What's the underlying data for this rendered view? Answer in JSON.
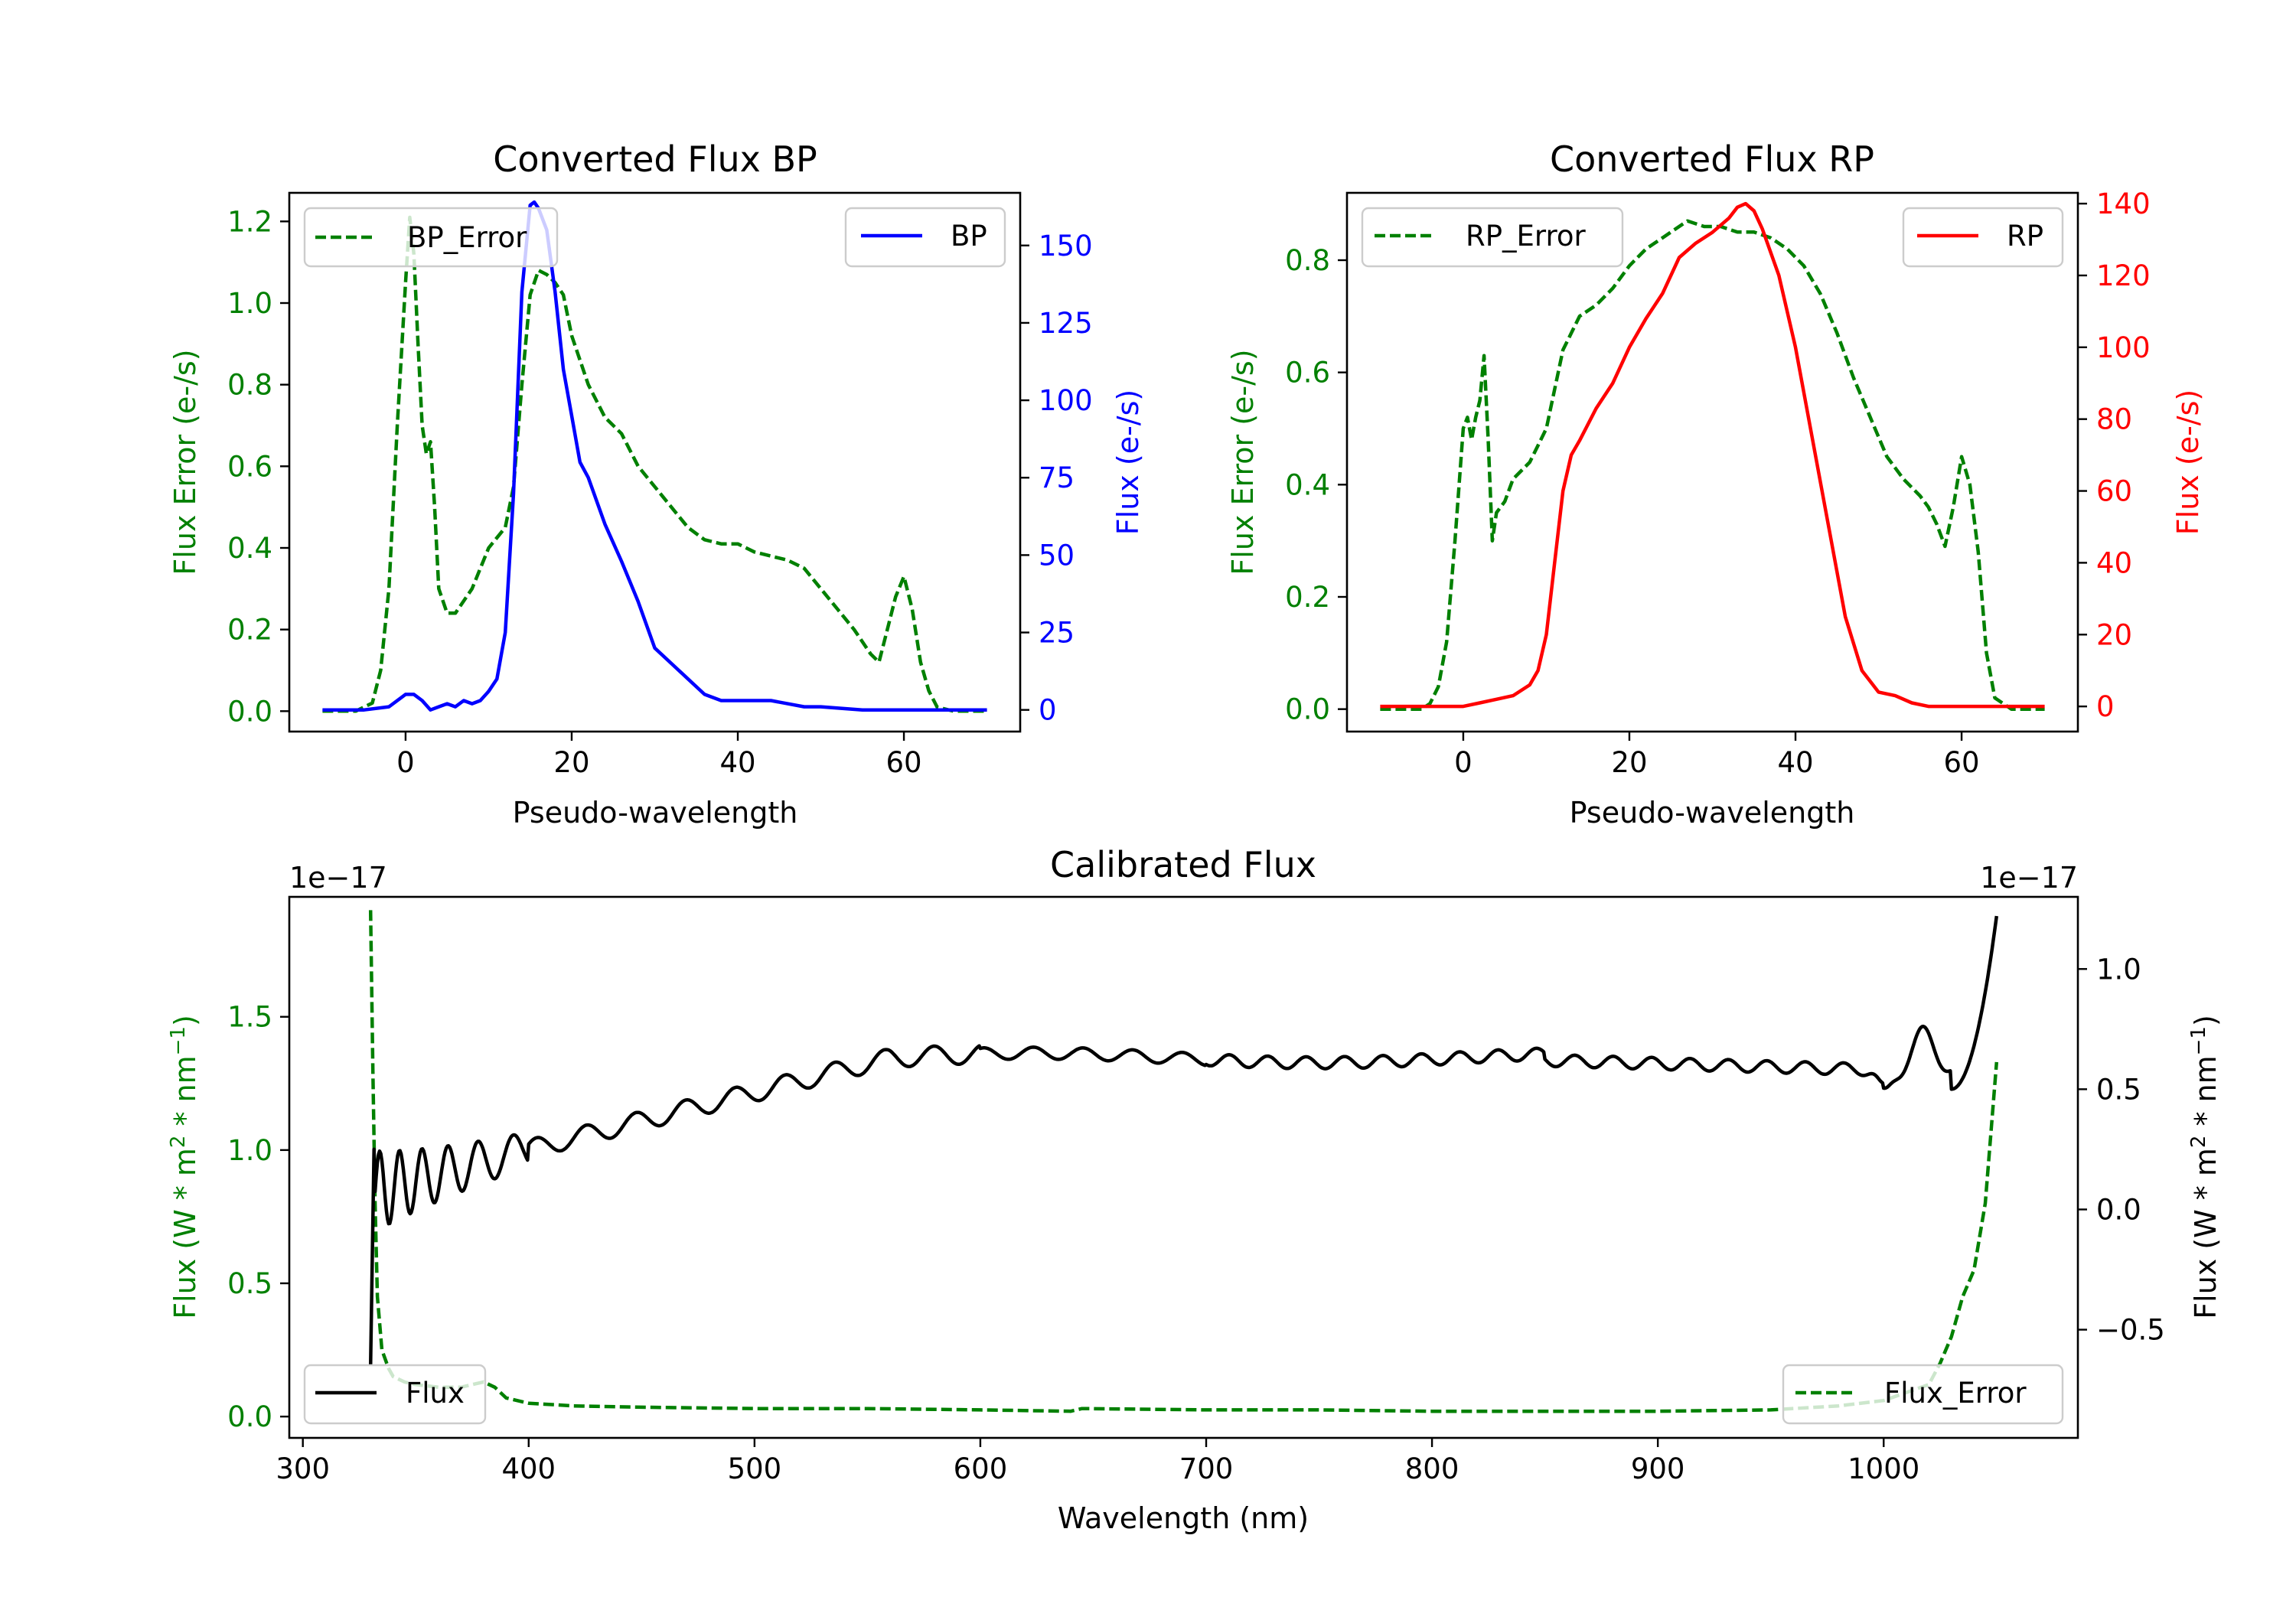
{
  "chart_data": [
    {
      "type": "line",
      "title": "Converted Flux BP",
      "xlabel": "Pseudo-wavelength",
      "xlim": [
        -14,
        74
      ],
      "xticks": [
        "0",
        "20",
        "40",
        "60"
      ],
      "left_axis": {
        "label": "Flux Error (e-/s)",
        "ylim": [
          -0.05,
          1.27
        ],
        "ticks": [
          "0.0",
          "0.2",
          "0.4",
          "0.6",
          "0.8",
          "1.0",
          "1.2"
        ],
        "color": "#008000"
      },
      "right_axis": {
        "label": "Flux (e-/s)",
        "ylim": [
          -7,
          167
        ],
        "ticks": [
          "0",
          "25",
          "50",
          "75",
          "100",
          "125",
          "150"
        ],
        "color": "#0000ff"
      },
      "series": [
        {
          "name": "BP_Error",
          "axis": "left",
          "style": "dashed",
          "color": "#008000",
          "x": [
            -10,
            -6,
            -4,
            -3,
            -2,
            -1,
            0,
            0.5,
            1,
            1.5,
            2,
            2.5,
            3,
            3.5,
            4,
            5,
            6,
            8,
            10,
            12,
            13,
            14,
            15,
            16,
            17,
            18,
            19,
            20,
            22,
            24,
            26,
            28,
            30,
            32,
            34,
            36,
            38,
            40,
            42,
            44,
            46,
            48,
            50,
            52,
            54,
            56,
            57,
            58,
            59,
            60,
            61,
            62,
            63,
            64,
            66,
            70
          ],
          "y": [
            0,
            0,
            0.02,
            0.1,
            0.3,
            0.7,
            1.05,
            1.21,
            1.12,
            0.9,
            0.7,
            0.63,
            0.66,
            0.5,
            0.3,
            0.24,
            0.24,
            0.3,
            0.4,
            0.45,
            0.55,
            0.8,
            1.02,
            1.08,
            1.07,
            1.05,
            1.02,
            0.92,
            0.8,
            0.72,
            0.68,
            0.6,
            0.55,
            0.5,
            0.45,
            0.42,
            0.41,
            0.41,
            0.39,
            0.38,
            0.37,
            0.35,
            0.3,
            0.25,
            0.2,
            0.14,
            0.12,
            0.2,
            0.28,
            0.33,
            0.25,
            0.12,
            0.05,
            0.01,
            0,
            0
          ]
        },
        {
          "name": "BP",
          "axis": "right",
          "style": "solid",
          "color": "#0000ff",
          "x": [
            -10,
            -5,
            -2,
            0,
            1,
            2,
            3,
            4,
            5,
            6,
            7,
            8,
            9,
            10,
            11,
            12,
            13,
            14,
            15,
            15.5,
            16,
            17,
            18,
            19,
            20,
            21,
            22,
            24,
            26,
            28,
            30,
            32,
            34,
            36,
            38,
            40,
            42,
            44,
            46,
            48,
            50,
            55,
            60,
            70
          ],
          "y": [
            0,
            0,
            1,
            5,
            5,
            3,
            0,
            1,
            2,
            1,
            3,
            2,
            3,
            6,
            10,
            25,
            70,
            135,
            163,
            164,
            162,
            155,
            135,
            110,
            95,
            80,
            75,
            60,
            48,
            35,
            20,
            15,
            10,
            5,
            3,
            3,
            3,
            3,
            2,
            1,
            1,
            0,
            0,
            0
          ]
        }
      ],
      "legend": [
        {
          "label": "BP_Error",
          "position": "top-left"
        },
        {
          "label": "BP",
          "position": "top-right"
        }
      ]
    },
    {
      "type": "line",
      "title": "Converted Flux RP",
      "xlabel": "Pseudo-wavelength",
      "xlim": [
        -14,
        74
      ],
      "xticks": [
        "0",
        "20",
        "40",
        "60"
      ],
      "left_axis": {
        "label": "Flux Error (e-/s)",
        "ylim": [
          -0.04,
          0.92
        ],
        "ticks": [
          "0.0",
          "0.2",
          "0.4",
          "0.6",
          "0.8"
        ],
        "color": "#008000"
      },
      "right_axis": {
        "label": "Flux (e-/s)",
        "ylim": [
          -7,
          143
        ],
        "ticks": [
          "0",
          "20",
          "40",
          "60",
          "80",
          "100",
          "120",
          "140"
        ],
        "color": "#ff0000"
      },
      "series": [
        {
          "name": "RP_Error",
          "axis": "left",
          "style": "dashed",
          "color": "#008000",
          "x": [
            -10,
            -5,
            -4,
            -3,
            -2,
            -1,
            0,
            0.5,
            1,
            1.5,
            2,
            2.5,
            3,
            3.5,
            4,
            5,
            6,
            8,
            10,
            12,
            14,
            16,
            18,
            20,
            22,
            24,
            25,
            27,
            29,
            31,
            33,
            35,
            37,
            39,
            41,
            43,
            45,
            47,
            49,
            51,
            53,
            55,
            56,
            57,
            58,
            59,
            60,
            61,
            62,
            63,
            64,
            66,
            70
          ],
          "y": [
            0,
            0,
            0.01,
            0.04,
            0.12,
            0.3,
            0.5,
            0.52,
            0.48,
            0.52,
            0.55,
            0.63,
            0.48,
            0.3,
            0.35,
            0.37,
            0.41,
            0.44,
            0.5,
            0.64,
            0.7,
            0.72,
            0.75,
            0.79,
            0.82,
            0.84,
            0.85,
            0.87,
            0.86,
            0.86,
            0.85,
            0.85,
            0.84,
            0.82,
            0.79,
            0.74,
            0.67,
            0.59,
            0.52,
            0.45,
            0.41,
            0.38,
            0.36,
            0.33,
            0.29,
            0.36,
            0.45,
            0.4,
            0.28,
            0.1,
            0.02,
            0,
            0
          ]
        },
        {
          "name": "RP",
          "axis": "right",
          "style": "solid",
          "color": "#ff0000",
          "x": [
            -10,
            -5,
            0,
            2,
            4,
            6,
            8,
            9,
            10,
            11,
            12,
            13,
            14,
            16,
            18,
            20,
            22,
            24,
            26,
            28,
            30,
            32,
            33,
            34,
            35,
            36,
            38,
            40,
            42,
            44,
            46,
            48,
            50,
            52,
            54,
            56,
            60,
            70
          ],
          "y": [
            0,
            0,
            0,
            1,
            2,
            3,
            6,
            10,
            20,
            40,
            60,
            70,
            74,
            83,
            90,
            100,
            108,
            115,
            125,
            129,
            132,
            136,
            139,
            140,
            138,
            133,
            120,
            100,
            75,
            50,
            25,
            10,
            4,
            3,
            1,
            0,
            0,
            0
          ]
        }
      ],
      "legend": [
        {
          "label": "RP_Error",
          "position": "top-left"
        },
        {
          "label": "RP",
          "position": "top-right"
        }
      ]
    },
    {
      "type": "line",
      "title": "Calibrated Flux",
      "xlabel": "Wavelength (nm)",
      "xlim": [
        294,
        1086
      ],
      "xticks": [
        "300",
        "400",
        "500",
        "600",
        "700",
        "800",
        "900",
        "1000"
      ],
      "left_axis": {
        "label": "Flux (W * m^2 * nm^-1)",
        "ylim": [
          -0.08,
          1.95
        ],
        "ticks": [
          "0.0",
          "0.5",
          "1.0",
          "1.5"
        ],
        "offset_text": "1e−17",
        "color": "#008000"
      },
      "right_axis": {
        "label": "Flux (W * m^2 * nm^-1)",
        "ylim": [
          -0.95,
          1.3
        ],
        "ticks": [
          "−0.5",
          "0.0",
          "0.5",
          "1.0"
        ],
        "offset_text": "1e−17",
        "color": "#000000"
      },
      "series": [
        {
          "name": "Flux_Error",
          "axis": "left",
          "style": "dashed",
          "color": "#008000",
          "x": [
            330,
            331,
            332,
            333,
            335,
            338,
            340,
            345,
            350,
            360,
            370,
            380,
            385,
            390,
            400,
            420,
            450,
            500,
            550,
            600,
            640,
            645,
            700,
            750,
            800,
            850,
            900,
            950,
            980,
            1000,
            1010,
            1020,
            1025,
            1030,
            1035,
            1040,
            1045,
            1050
          ],
          "y": [
            1.9,
            1.3,
            0.8,
            0.45,
            0.25,
            0.18,
            0.15,
            0.13,
            0.12,
            0.11,
            0.11,
            0.13,
            0.11,
            0.07,
            0.05,
            0.04,
            0.035,
            0.03,
            0.03,
            0.025,
            0.02,
            0.03,
            0.025,
            0.025,
            0.02,
            0.02,
            0.02,
            0.025,
            0.04,
            0.06,
            0.09,
            0.12,
            0.2,
            0.3,
            0.45,
            0.55,
            0.8,
            1.33
          ]
        }
      ],
      "flux_series": {
        "name": "Flux",
        "axis": "right",
        "style": "solid",
        "color": "#000000",
        "x_range": [
          330,
          1050
        ]
      },
      "legend": [
        {
          "label": "Flux",
          "position": "bottom-left"
        },
        {
          "label": "Flux_Error",
          "position": "bottom-right"
        }
      ]
    }
  ]
}
